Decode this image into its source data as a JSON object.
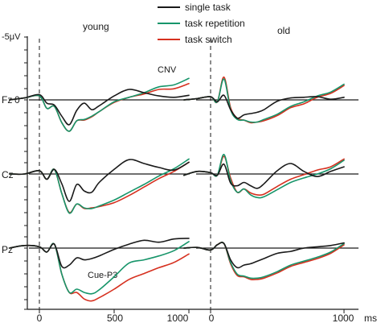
{
  "chart_data": {
    "type": "line",
    "title": "",
    "ylabel": "-5μV",
    "xlabel": "ms",
    "colors": {
      "single task": "#1a1a1a",
      "task repetition": "#17956a",
      "task switch": "#d6301f"
    },
    "legend": {
      "placement": "top-right",
      "entries": [
        "single task",
        "task repetition",
        "task switch"
      ]
    },
    "groups": [
      "young",
      "old"
    ],
    "electrodes": [
      "Fz",
      "Cz",
      "Pz"
    ],
    "xlim": [
      -200,
      1000
    ],
    "x_ticks": [
      0,
      500,
      1000
    ],
    "x_tick_labels": [
      "0",
      "500",
      "1000"
    ],
    "x_unit_label": "ms",
    "y_scale_label": "-5μV",
    "y_zero_label": "0",
    "y_positive_down": true,
    "ylim_uV": [
      -6,
      9
    ],
    "annotations": [
      {
        "text": "CNV",
        "group": "young",
        "electrode": "Fz"
      },
      {
        "text": "Cue-P3",
        "group": "young",
        "electrode": "Pz"
      }
    ],
    "x": [
      -200,
      -100,
      0,
      50,
      100,
      150,
      200,
      250,
      300,
      350,
      400,
      500,
      600,
      700,
      800,
      900,
      1000
    ],
    "panels": [
      {
        "group": "young",
        "electrode": "Fz",
        "series": [
          {
            "name": "single task",
            "values": [
              0,
              -0.3,
              -0.8,
              0.5,
              0.8,
              2.5,
              3.8,
              1.6,
              0.5,
              1.5,
              0.9,
              -0.6,
              -1.6,
              -1.1,
              -0.6,
              -0.4,
              -0.7
            ]
          },
          {
            "name": "task repetition",
            "values": [
              0,
              -0.3,
              -0.6,
              1.3,
              1.0,
              3.5,
              4.8,
              3.2,
              3.0,
              2.5,
              1.8,
              0.3,
              -0.4,
              -1.1,
              -2.0,
              -2.3,
              -3.3
            ]
          },
          {
            "name": "task switch",
            "values": [
              0,
              -0.3,
              -0.6,
              1.3,
              1.0,
              3.5,
              4.8,
              3.2,
              3.1,
              2.6,
              1.8,
              0.4,
              -0.4,
              -0.9,
              -1.6,
              -1.7,
              -2.5
            ]
          }
        ]
      },
      {
        "group": "old",
        "electrode": "Fz",
        "series": [
          {
            "name": "single task",
            "values": [
              0,
              -0.2,
              -0.5,
              0.3,
              -0.7,
              1.5,
              2.8,
              2.3,
              2.1,
              1.9,
              1.5,
              0.2,
              -0.3,
              -0.4,
              -0.5,
              -0.1,
              -0.4
            ]
          },
          {
            "name": "task repetition",
            "values": [
              0,
              -0.2,
              -0.5,
              0.3,
              -3.2,
              1.5,
              3.0,
              3.1,
              3.4,
              3.4,
              3.0,
              2.2,
              1.0,
              0.3,
              -0.6,
              -1.2,
              -2.4
            ]
          },
          {
            "name": "task switch",
            "values": [
              0,
              -0.2,
              -0.5,
              0.3,
              -3.5,
              1.2,
              2.8,
              3.1,
              3.5,
              3.4,
              3.2,
              2.4,
              1.2,
              0.6,
              -0.4,
              -1.0,
              -2.2
            ]
          }
        ]
      },
      {
        "group": "young",
        "electrode": "Cz",
        "series": [
          {
            "name": "single task",
            "values": [
              0,
              0,
              -0.5,
              0.8,
              -0.7,
              1.5,
              4.2,
              1.6,
              2.6,
              2.8,
              1.3,
              -0.7,
              -2.2,
              -1.6,
              -1.0,
              -0.6,
              -1.8
            ]
          },
          {
            "name": "task repetition",
            "values": [
              0,
              0,
              -0.5,
              0.8,
              -0.7,
              3.0,
              6.0,
              4.6,
              5.2,
              5.3,
              4.9,
              4.0,
              2.8,
              1.6,
              0.3,
              -0.8,
              -2.3
            ]
          },
          {
            "name": "task switch",
            "values": [
              0,
              0,
              -0.5,
              0.8,
              -0.7,
              3.0,
              5.9,
              4.6,
              5.3,
              5.2,
              5.0,
              4.4,
              3.3,
              2.0,
              0.7,
              -0.4,
              -1.8
            ]
          }
        ]
      },
      {
        "group": "old",
        "electrode": "Cz",
        "series": [
          {
            "name": "single task",
            "values": [
              0.2,
              -0.4,
              -0.2,
              0.2,
              -1.5,
              1.4,
              1.8,
              1.3,
              1.8,
              2.2,
              1.5,
              -0.5,
              -1.6,
              -0.4,
              0.4,
              -0.4,
              -1.1
            ]
          },
          {
            "name": "task repetition",
            "values": [
              0.2,
              -0.4,
              -0.2,
              0.2,
              -3.0,
              1.0,
              2.8,
              2.3,
              3.2,
              3.6,
              3.5,
              2.4,
              1.3,
              0.6,
              0,
              -0.8,
              -2.1
            ]
          },
          {
            "name": "task switch",
            "values": [
              0.2,
              -0.4,
              -0.2,
              0.2,
              -2.7,
              0.6,
              2.8,
              2.3,
              2.9,
              3.2,
              3.1,
              1.9,
              0.8,
              0.1,
              -0.6,
              -1.1,
              -2.3
            ]
          }
        ]
      },
      {
        "group": "young",
        "electrode": "Pz",
        "series": [
          {
            "name": "single task",
            "values": [
              0,
              -0.4,
              -0.2,
              0.6,
              -0.6,
              2.8,
              2.6,
              1.5,
              1.8,
              1.6,
              1.2,
              0.2,
              -0.6,
              -1.2,
              -0.9,
              -1.4,
              -1.5
            ]
          },
          {
            "name": "task repetition",
            "values": [
              0,
              -0.4,
              -0.2,
              0.6,
              -0.6,
              4.0,
              6.8,
              6.3,
              6.8,
              7.0,
              6.4,
              4.4,
              2.3,
              1.8,
              1.2,
              0.4,
              -1.0
            ]
          },
          {
            "name": "task switch",
            "values": [
              0,
              -0.4,
              -0.2,
              0.6,
              -0.6,
              4.0,
              6.8,
              6.8,
              7.8,
              8.1,
              7.6,
              6.3,
              4.8,
              3.9,
              3.0,
              2.2,
              0.9
            ]
          }
        ]
      },
      {
        "group": "old",
        "electrode": "Pz",
        "series": [
          {
            "name": "single task",
            "values": [
              0,
              -0.1,
              0.3,
              -0.5,
              -0.7,
              1.8,
              3.0,
              2.6,
              2.4,
              2.0,
              1.6,
              0.8,
              0.5,
              0.0,
              -0.2,
              -0.4,
              -0.8
            ]
          },
          {
            "name": "task repetition",
            "values": [
              0,
              -0.1,
              0.3,
              -0.5,
              -0.7,
              2.2,
              4.0,
              4.3,
              4.6,
              4.6,
              4.4,
              3.6,
              2.6,
              2.0,
              1.4,
              0.6,
              -0.7
            ]
          },
          {
            "name": "task switch",
            "values": [
              0,
              -0.1,
              0.3,
              -0.5,
              -0.7,
              2.4,
              4.2,
              4.4,
              4.8,
              4.8,
              4.6,
              3.8,
              2.8,
              2.2,
              1.6,
              0.8,
              -0.5
            ]
          }
        ]
      }
    ]
  }
}
